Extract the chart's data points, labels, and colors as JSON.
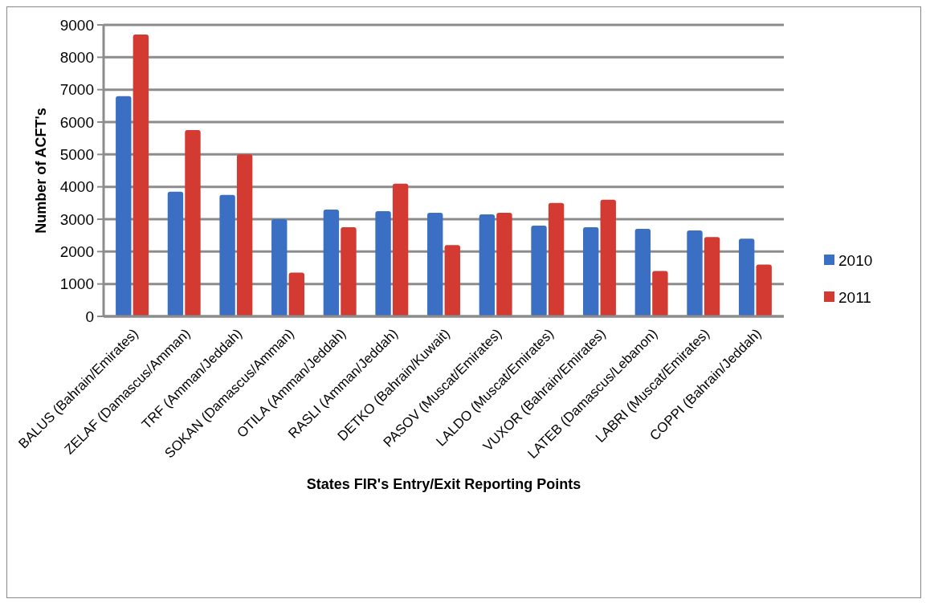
{
  "chart_data": {
    "type": "bar",
    "xlabel": "States FIR's Entry/Exit Reporting Points",
    "ylabel": "Number of ACFT's",
    "categories": [
      "BALUS (Bahrain/Emirates)",
      "ZELAF (Damascus/Amman)",
      "TRF (Amman/Jeddah)",
      "SOKAN (Damascus/Amman)",
      "OTILA (Amman/Jeddah)",
      "RASLI (Amman/Jeddah)",
      "DETKO (Bahrain/Kuwait)",
      "PASOV (Muscat/Emirates)",
      "LALDO (Muscat/Emirates)",
      "VUXOR (Bahrain/Emirates)",
      "LATEB (Damascus/Lebanon)",
      "LABRI (Muscat/Emirates)",
      "COPPI (Bahrain/Jeddah)"
    ],
    "series": [
      {
        "name": "2010",
        "color": "#3a6fc4",
        "values": [
          6800,
          3850,
          3750,
          3000,
          3300,
          3250,
          3200,
          3150,
          2800,
          2750,
          2700,
          2650,
          2400
        ]
      },
      {
        "name": "2011",
        "color": "#d23a32",
        "values": [
          8700,
          5750,
          5000,
          1350,
          2750,
          4100,
          2200,
          3200,
          3500,
          3600,
          1400,
          2450,
          1600
        ]
      }
    ],
    "ylim": [
      0,
      9000
    ],
    "yticks": [
      0,
      1000,
      2000,
      3000,
      4000,
      5000,
      6000,
      7000,
      8000,
      9000
    ],
    "grid": "y",
    "legend": "right"
  }
}
